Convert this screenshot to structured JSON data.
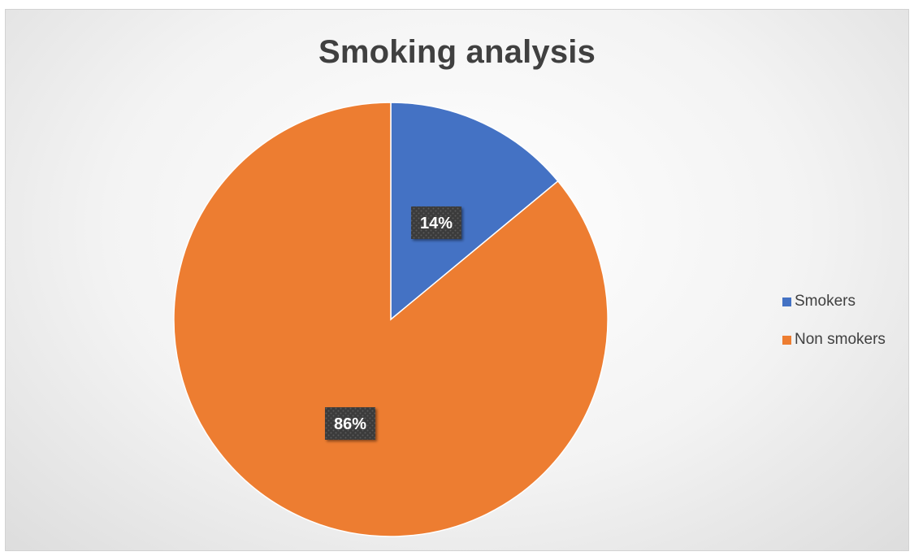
{
  "chart_data": {
    "type": "pie",
    "title": "Smoking analysis",
    "categories": [
      "Smokers",
      "Non smokers"
    ],
    "values": [
      14,
      86
    ],
    "data_labels": [
      "14%",
      "86%"
    ],
    "colors": [
      "#4472c4",
      "#ed7d31"
    ],
    "legend_position": "right",
    "label_style": "dark callout boxes with white bold text"
  }
}
